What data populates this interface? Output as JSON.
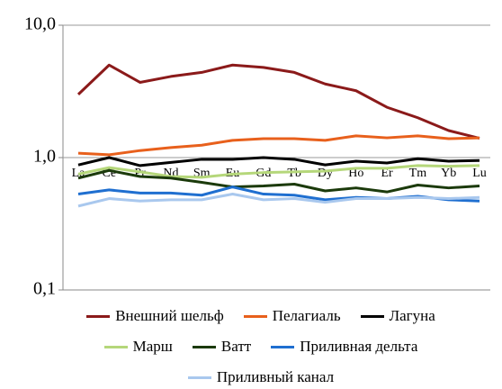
{
  "chart_data": {
    "type": "line",
    "log_scale": true,
    "categories": [
      "La",
      "Ce",
      "Pr",
      "Nd",
      "Sm",
      "Eu",
      "Gd",
      "Tb",
      "Dy",
      "Ho",
      "Er",
      "Tm",
      "Yb",
      "Lu"
    ],
    "ylim": [
      0.1,
      10
    ],
    "yticks": [
      {
        "value": 10,
        "label": "10,0"
      },
      {
        "value": 1,
        "label": "1,0"
      },
      {
        "value": 0.1,
        "label": "0,1"
      }
    ],
    "series": [
      {
        "name": "Внешний шельф",
        "color": "#8b1a1a",
        "values": [
          3.0,
          5.0,
          3.7,
          4.1,
          4.4,
          5.0,
          4.8,
          4.4,
          3.6,
          3.2,
          2.4,
          2.0,
          1.6,
          1.4
        ]
      },
      {
        "name": "Пелагиаль",
        "color": "#e8601c",
        "values": [
          1.08,
          1.05,
          1.13,
          1.19,
          1.24,
          1.35,
          1.39,
          1.39,
          1.35,
          1.46,
          1.41,
          1.46,
          1.39,
          1.41
        ]
      },
      {
        "name": "Лагуна",
        "color": "#000000",
        "values": [
          0.88,
          1.0,
          0.87,
          0.92,
          0.97,
          0.97,
          1.0,
          0.97,
          0.88,
          0.94,
          0.91,
          0.98,
          0.94,
          0.95
        ]
      },
      {
        "name": "Марш",
        "color": "#b5d77a",
        "values": [
          0.75,
          0.84,
          0.78,
          0.72,
          0.71,
          0.75,
          0.77,
          0.78,
          0.79,
          0.83,
          0.83,
          0.87,
          0.86,
          0.87
        ]
      },
      {
        "name": "Ватт",
        "color": "#1b3a0b",
        "values": [
          0.7,
          0.8,
          0.72,
          0.7,
          0.65,
          0.6,
          0.61,
          0.63,
          0.56,
          0.59,
          0.55,
          0.62,
          0.59,
          0.61
        ]
      },
      {
        "name": "Приливная дельта",
        "color": "#1f6fd0",
        "values": [
          0.53,
          0.57,
          0.54,
          0.54,
          0.52,
          0.6,
          0.53,
          0.52,
          0.48,
          0.5,
          0.49,
          0.51,
          0.48,
          0.47
        ]
      },
      {
        "name": "Приливный канал",
        "color": "#a9c8ee",
        "values": [
          0.43,
          0.49,
          0.47,
          0.48,
          0.48,
          0.53,
          0.48,
          0.49,
          0.46,
          0.49,
          0.49,
          0.5,
          0.49,
          0.5
        ]
      }
    ]
  }
}
